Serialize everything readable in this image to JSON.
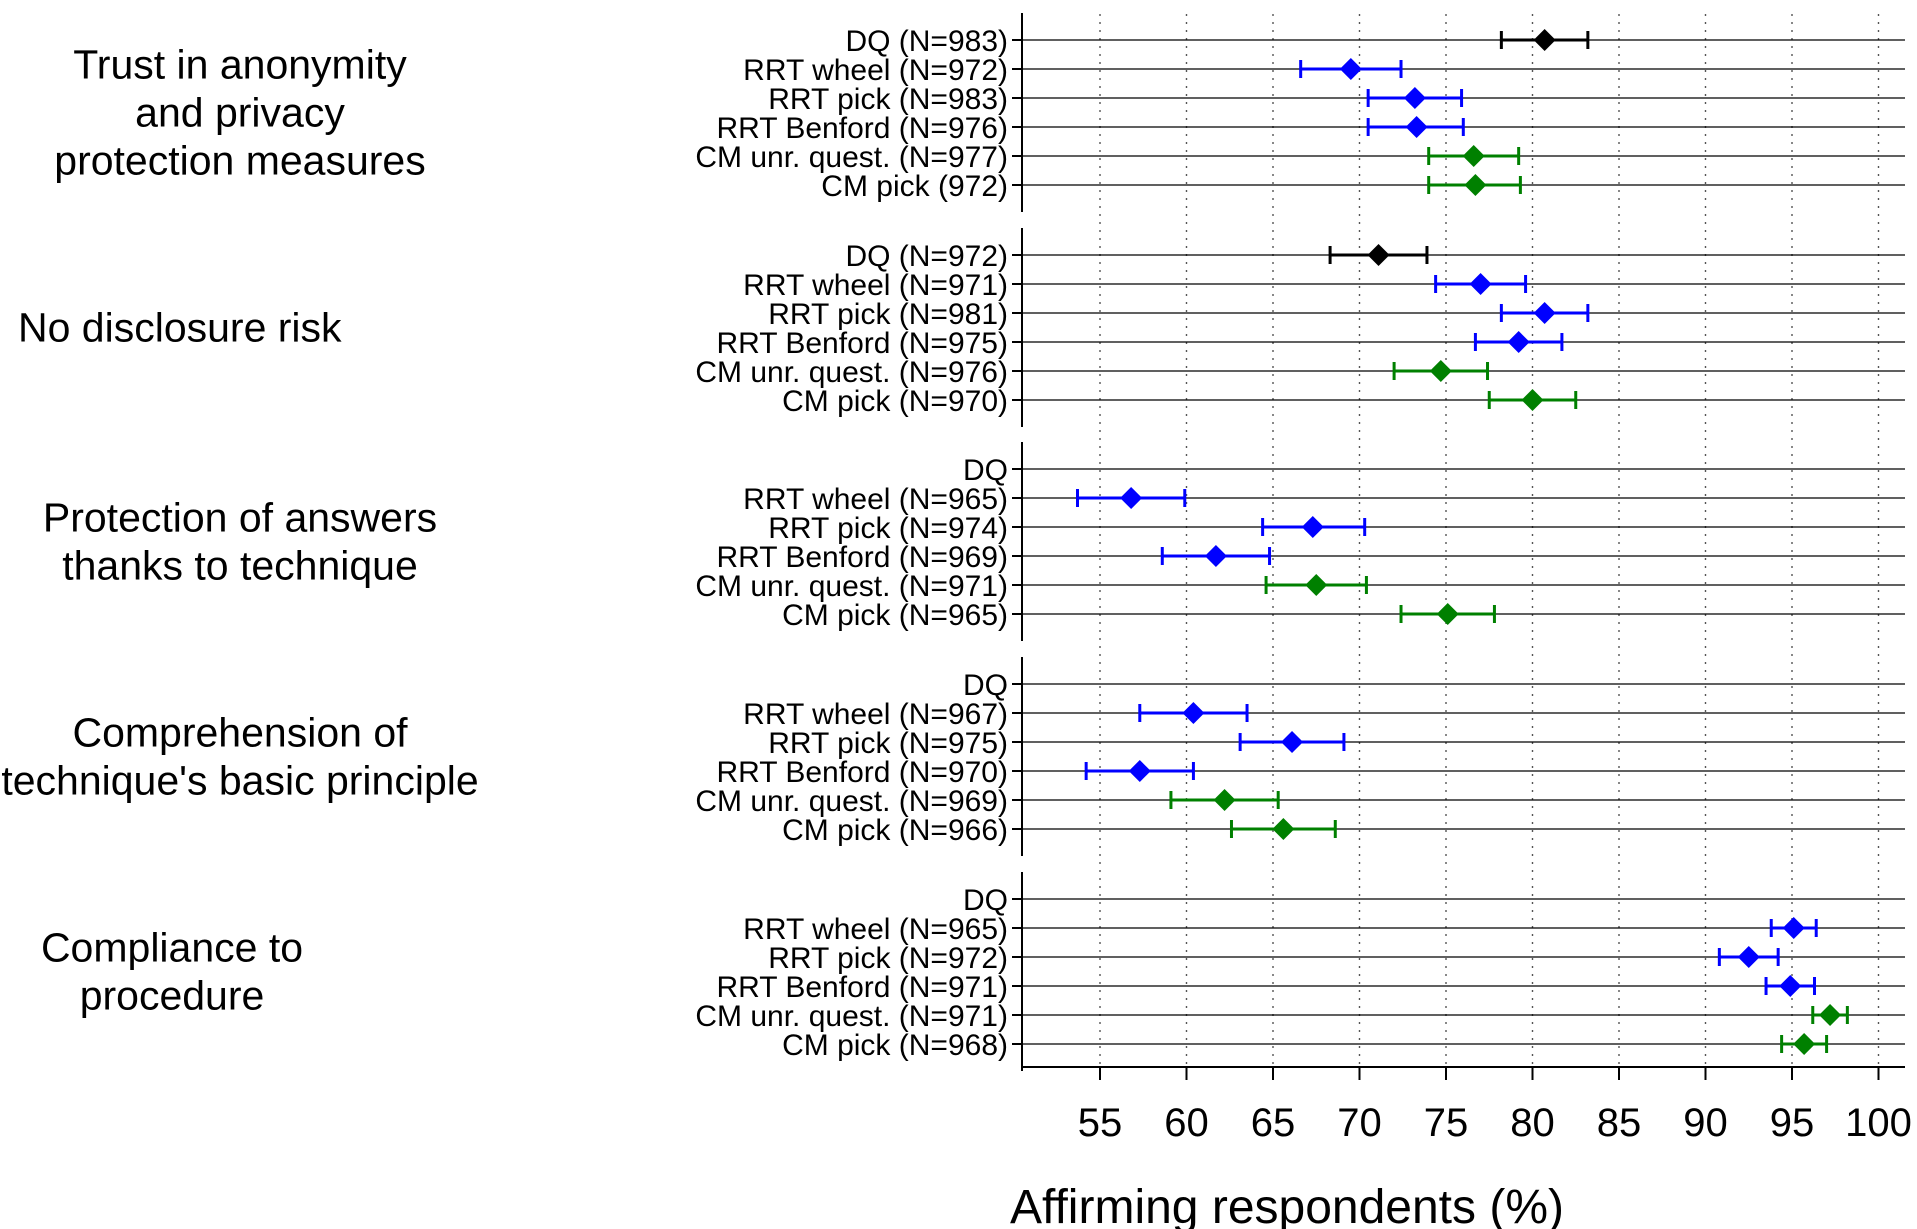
{
  "chart_data": {
    "type": "scatter",
    "style": "dot-and-whisker",
    "xlabel": "Affirming respondents (%)",
    "xlim": [
      50,
      101
    ],
    "xticks": [
      55,
      60,
      65,
      70,
      75,
      80,
      85,
      90,
      95,
      100
    ],
    "grid": "vertical dotted at ticks",
    "colors": {
      "DQ": "#000000",
      "RRT": "#0000ff",
      "CM": "#008000"
    },
    "groups": [
      {
        "label_lines": [
          "Trust in anonymity",
          "and privacy",
          "protection measures"
        ],
        "rows": [
          {
            "label": "DQ (N=983)",
            "method": "DQ",
            "estimate": 80.7,
            "ci": [
              78.2,
              83.2
            ]
          },
          {
            "label": "RRT wheel (N=972)",
            "method": "RRT",
            "estimate": 69.5,
            "ci": [
              66.6,
              72.4
            ]
          },
          {
            "label": "RRT pick (N=983)",
            "method": "RRT",
            "estimate": 73.2,
            "ci": [
              70.5,
              75.9
            ]
          },
          {
            "label": "RRT Benford (N=976)",
            "method": "RRT",
            "estimate": 73.3,
            "ci": [
              70.5,
              76.0
            ]
          },
          {
            "label": "CM unr. quest. (N=977)",
            "method": "CM",
            "estimate": 76.6,
            "ci": [
              74.0,
              79.2
            ]
          },
          {
            "label": "CM pick (972)",
            "method": "CM",
            "estimate": 76.7,
            "ci": [
              74.0,
              79.3
            ]
          }
        ]
      },
      {
        "label_lines": [
          "No disclosure risk"
        ],
        "rows": [
          {
            "label": "DQ (N=972)",
            "method": "DQ",
            "estimate": 71.1,
            "ci": [
              68.3,
              73.9
            ]
          },
          {
            "label": "RRT wheel (N=971)",
            "method": "RRT",
            "estimate": 77.0,
            "ci": [
              74.4,
              79.6
            ]
          },
          {
            "label": "RRT pick (N=981)",
            "method": "RRT",
            "estimate": 80.7,
            "ci": [
              78.2,
              83.2
            ]
          },
          {
            "label": "RRT Benford (N=975)",
            "method": "RRT",
            "estimate": 79.2,
            "ci": [
              76.7,
              81.7
            ]
          },
          {
            "label": "CM unr. quest. (N=976)",
            "method": "CM",
            "estimate": 74.7,
            "ci": [
              72.0,
              77.4
            ]
          },
          {
            "label": "CM pick (N=970)",
            "method": "CM",
            "estimate": 80.0,
            "ci": [
              77.5,
              82.5
            ]
          }
        ]
      },
      {
        "label_lines": [
          "Protection of answers",
          "thanks to technique"
        ],
        "rows": [
          {
            "label": "DQ",
            "method": "DQ",
            "estimate": null,
            "ci": null
          },
          {
            "label": "RRT wheel (N=965)",
            "method": "RRT",
            "estimate": 56.8,
            "ci": [
              53.7,
              59.9
            ]
          },
          {
            "label": "RRT pick (N=974)",
            "method": "RRT",
            "estimate": 67.3,
            "ci": [
              64.4,
              70.3
            ]
          },
          {
            "label": "RRT Benford (N=969)",
            "method": "RRT",
            "estimate": 61.7,
            "ci": [
              58.6,
              64.8
            ]
          },
          {
            "label": "CM unr. quest. (N=971)",
            "method": "CM",
            "estimate": 67.5,
            "ci": [
              64.6,
              70.4
            ]
          },
          {
            "label": "CM pick (N=965)",
            "method": "CM",
            "estimate": 75.1,
            "ci": [
              72.4,
              77.8
            ]
          }
        ]
      },
      {
        "label_lines": [
          "Comprehension of",
          "technique's basic principle"
        ],
        "rows": [
          {
            "label": "DQ",
            "method": "DQ",
            "estimate": null,
            "ci": null
          },
          {
            "label": "RRT wheel (N=967)",
            "method": "RRT",
            "estimate": 60.4,
            "ci": [
              57.3,
              63.5
            ]
          },
          {
            "label": "RRT pick (N=975)",
            "method": "RRT",
            "estimate": 66.1,
            "ci": [
              63.1,
              69.1
            ]
          },
          {
            "label": "RRT Benford (N=970)",
            "method": "RRT",
            "estimate": 57.3,
            "ci": [
              54.2,
              60.4
            ]
          },
          {
            "label": "CM unr. quest. (N=969)",
            "method": "CM",
            "estimate": 62.2,
            "ci": [
              59.1,
              65.3
            ]
          },
          {
            "label": "CM pick (N=966)",
            "method": "CM",
            "estimate": 65.6,
            "ci": [
              62.6,
              68.6
            ]
          }
        ]
      },
      {
        "label_lines": [
          "Compliance to",
          "procedure"
        ],
        "rows": [
          {
            "label": "DQ",
            "method": "DQ",
            "estimate": null,
            "ci": null
          },
          {
            "label": "RRT wheel (N=965)",
            "method": "RRT",
            "estimate": 95.1,
            "ci": [
              93.8,
              96.4
            ]
          },
          {
            "label": "RRT pick (N=972)",
            "method": "RRT",
            "estimate": 92.5,
            "ci": [
              90.8,
              94.2
            ]
          },
          {
            "label": "RRT Benford (N=971)",
            "method": "RRT",
            "estimate": 94.9,
            "ci": [
              93.5,
              96.3
            ]
          },
          {
            "label": "CM unr. quest. (N=971)",
            "method": "CM",
            "estimate": 97.2,
            "ci": [
              96.2,
              98.2
            ]
          },
          {
            "label": "CM pick (N=968)",
            "method": "CM",
            "estimate": 95.7,
            "ci": [
              94.4,
              97.0
            ]
          }
        ]
      }
    ]
  }
}
